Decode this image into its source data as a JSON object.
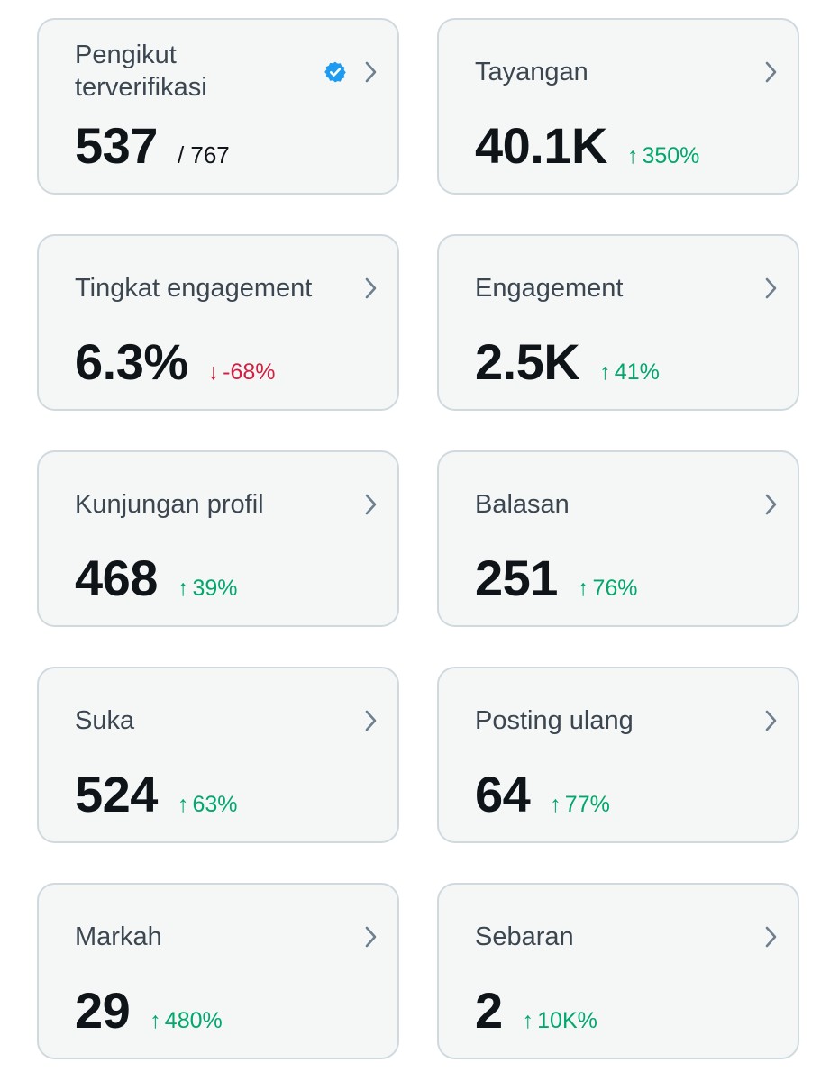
{
  "colors": {
    "card_bg": "#f5f7f7",
    "card_border": "#cfd9de",
    "label": "#3b4650",
    "value": "#0f1419",
    "up": "#00a86b",
    "down": "#d61d3f",
    "verified": "#1d9bf0",
    "chevron": "#6e7f8d"
  },
  "cards": [
    {
      "label": "Pengikut terverifikasi",
      "value": "537",
      "sub": "/ 767",
      "verified_icon": "verified-badge-icon",
      "chevron_icon": "chevron-right-icon"
    },
    {
      "label": "Tayangan",
      "value": "40.1K",
      "change": "350%",
      "direction": "up",
      "arrow": "↑",
      "chevron_icon": "chevron-right-icon"
    },
    {
      "label": "Tingkat engagement",
      "value": "6.3%",
      "change": "-68%",
      "direction": "down",
      "arrow": "↓",
      "chevron_icon": "chevron-right-icon"
    },
    {
      "label": "Engagement",
      "value": "2.5K",
      "change": "41%",
      "direction": "up",
      "arrow": "↑",
      "chevron_icon": "chevron-right-icon"
    },
    {
      "label": "Kunjungan profil",
      "value": "468",
      "change": "39%",
      "direction": "up",
      "arrow": "↑",
      "chevron_icon": "chevron-right-icon"
    },
    {
      "label": "Balasan",
      "value": "251",
      "change": "76%",
      "direction": "up",
      "arrow": "↑",
      "chevron_icon": "chevron-right-icon"
    },
    {
      "label": "Suka",
      "value": "524",
      "change": "63%",
      "direction": "up",
      "arrow": "↑",
      "chevron_icon": "chevron-right-icon"
    },
    {
      "label": "Posting ulang",
      "value": "64",
      "change": "77%",
      "direction": "up",
      "arrow": "↑",
      "chevron_icon": "chevron-right-icon"
    },
    {
      "label": "Markah",
      "value": "29",
      "change": "480%",
      "direction": "up",
      "arrow": "↑",
      "chevron_icon": "chevron-right-icon"
    },
    {
      "label": "Sebaran",
      "value": "2",
      "change": "10K%",
      "direction": "up",
      "arrow": "↑",
      "chevron_icon": "chevron-right-icon"
    }
  ]
}
